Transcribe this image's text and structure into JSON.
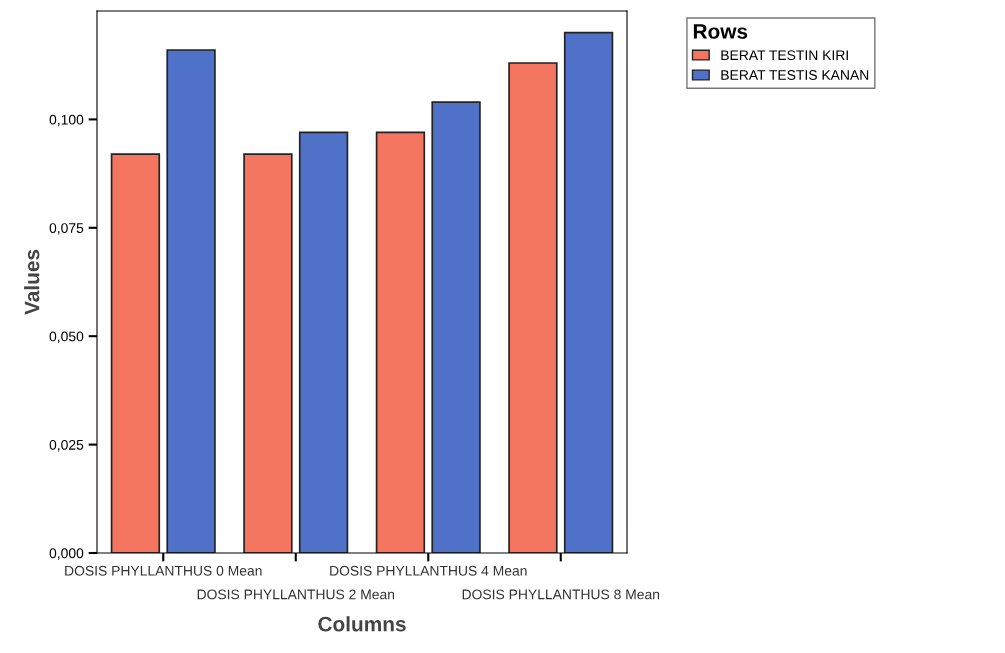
{
  "chart_data": {
    "type": "bar",
    "xlabel": "Columns",
    "ylabel": "Values",
    "legend_title": "Rows",
    "categories": [
      "DOSIS PHYLLANTHUS 0 Mean",
      "DOSIS PHYLLANTHUS 2 Mean",
      "DOSIS PHYLLANTHUS 4 Mean",
      "DOSIS PHYLLANTHUS 8 Mean"
    ],
    "series": [
      {
        "name": "BERAT TESTIN KIRI",
        "color": "#f47560",
        "values": [
          0.092,
          0.092,
          0.097,
          0.113
        ]
      },
      {
        "name": "BERAT TESTIS KANAN",
        "color": "#4f72c8",
        "values": [
          0.116,
          0.097,
          0.104,
          0.12
        ]
      }
    ],
    "ylim": [
      0,
      0.125
    ],
    "yticks": [
      {
        "value": 0,
        "label": "0,000"
      },
      {
        "value": 0.025,
        "label": "0,025"
      },
      {
        "value": 0.05,
        "label": "0,050"
      },
      {
        "value": 0.075,
        "label": "0,075"
      },
      {
        "value": 0.1,
        "label": "0,100"
      }
    ],
    "grid": false,
    "legend": "top right"
  }
}
